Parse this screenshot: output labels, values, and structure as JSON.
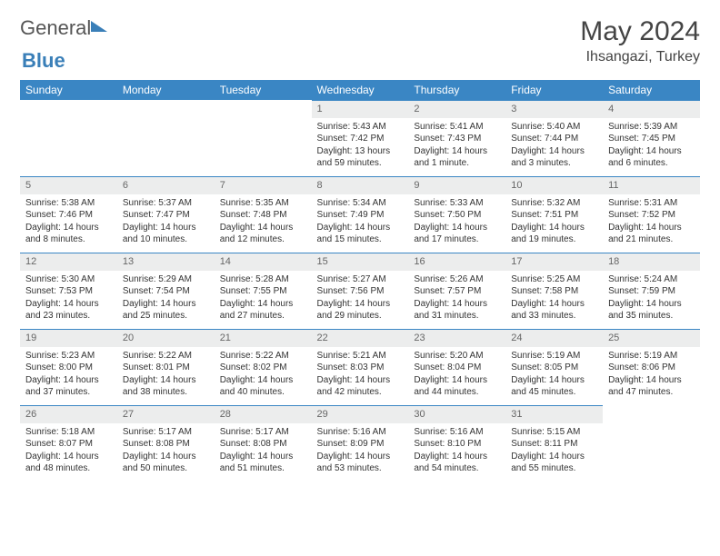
{
  "logo": {
    "text1": "General",
    "text2": "Blue"
  },
  "title": "May 2024",
  "location": "Ihsangazi, Turkey",
  "colors": {
    "header_bg": "#3a86c4",
    "daynum_bg": "#eceded",
    "rule": "#3a86c4"
  },
  "weekdays": [
    "Sunday",
    "Monday",
    "Tuesday",
    "Wednesday",
    "Thursday",
    "Friday",
    "Saturday"
  ],
  "weeks": [
    [
      null,
      null,
      null,
      {
        "n": "1",
        "sr": "5:43 AM",
        "ss": "7:42 PM",
        "dl": "13 hours and 59 minutes."
      },
      {
        "n": "2",
        "sr": "5:41 AM",
        "ss": "7:43 PM",
        "dl": "14 hours and 1 minute."
      },
      {
        "n": "3",
        "sr": "5:40 AM",
        "ss": "7:44 PM",
        "dl": "14 hours and 3 minutes."
      },
      {
        "n": "4",
        "sr": "5:39 AM",
        "ss": "7:45 PM",
        "dl": "14 hours and 6 minutes."
      }
    ],
    [
      {
        "n": "5",
        "sr": "5:38 AM",
        "ss": "7:46 PM",
        "dl": "14 hours and 8 minutes."
      },
      {
        "n": "6",
        "sr": "5:37 AM",
        "ss": "7:47 PM",
        "dl": "14 hours and 10 minutes."
      },
      {
        "n": "7",
        "sr": "5:35 AM",
        "ss": "7:48 PM",
        "dl": "14 hours and 12 minutes."
      },
      {
        "n": "8",
        "sr": "5:34 AM",
        "ss": "7:49 PM",
        "dl": "14 hours and 15 minutes."
      },
      {
        "n": "9",
        "sr": "5:33 AM",
        "ss": "7:50 PM",
        "dl": "14 hours and 17 minutes."
      },
      {
        "n": "10",
        "sr": "5:32 AM",
        "ss": "7:51 PM",
        "dl": "14 hours and 19 minutes."
      },
      {
        "n": "11",
        "sr": "5:31 AM",
        "ss": "7:52 PM",
        "dl": "14 hours and 21 minutes."
      }
    ],
    [
      {
        "n": "12",
        "sr": "5:30 AM",
        "ss": "7:53 PM",
        "dl": "14 hours and 23 minutes."
      },
      {
        "n": "13",
        "sr": "5:29 AM",
        "ss": "7:54 PM",
        "dl": "14 hours and 25 minutes."
      },
      {
        "n": "14",
        "sr": "5:28 AM",
        "ss": "7:55 PM",
        "dl": "14 hours and 27 minutes."
      },
      {
        "n": "15",
        "sr": "5:27 AM",
        "ss": "7:56 PM",
        "dl": "14 hours and 29 minutes."
      },
      {
        "n": "16",
        "sr": "5:26 AM",
        "ss": "7:57 PM",
        "dl": "14 hours and 31 minutes."
      },
      {
        "n": "17",
        "sr": "5:25 AM",
        "ss": "7:58 PM",
        "dl": "14 hours and 33 minutes."
      },
      {
        "n": "18",
        "sr": "5:24 AM",
        "ss": "7:59 PM",
        "dl": "14 hours and 35 minutes."
      }
    ],
    [
      {
        "n": "19",
        "sr": "5:23 AM",
        "ss": "8:00 PM",
        "dl": "14 hours and 37 minutes."
      },
      {
        "n": "20",
        "sr": "5:22 AM",
        "ss": "8:01 PM",
        "dl": "14 hours and 38 minutes."
      },
      {
        "n": "21",
        "sr": "5:22 AM",
        "ss": "8:02 PM",
        "dl": "14 hours and 40 minutes."
      },
      {
        "n": "22",
        "sr": "5:21 AM",
        "ss": "8:03 PM",
        "dl": "14 hours and 42 minutes."
      },
      {
        "n": "23",
        "sr": "5:20 AM",
        "ss": "8:04 PM",
        "dl": "14 hours and 44 minutes."
      },
      {
        "n": "24",
        "sr": "5:19 AM",
        "ss": "8:05 PM",
        "dl": "14 hours and 45 minutes."
      },
      {
        "n": "25",
        "sr": "5:19 AM",
        "ss": "8:06 PM",
        "dl": "14 hours and 47 minutes."
      }
    ],
    [
      {
        "n": "26",
        "sr": "5:18 AM",
        "ss": "8:07 PM",
        "dl": "14 hours and 48 minutes."
      },
      {
        "n": "27",
        "sr": "5:17 AM",
        "ss": "8:08 PM",
        "dl": "14 hours and 50 minutes."
      },
      {
        "n": "28",
        "sr": "5:17 AM",
        "ss": "8:08 PM",
        "dl": "14 hours and 51 minutes."
      },
      {
        "n": "29",
        "sr": "5:16 AM",
        "ss": "8:09 PM",
        "dl": "14 hours and 53 minutes."
      },
      {
        "n": "30",
        "sr": "5:16 AM",
        "ss": "8:10 PM",
        "dl": "14 hours and 54 minutes."
      },
      {
        "n": "31",
        "sr": "5:15 AM",
        "ss": "8:11 PM",
        "dl": "14 hours and 55 minutes."
      },
      null
    ]
  ],
  "labels": {
    "sunrise": "Sunrise:",
    "sunset": "Sunset:",
    "daylight": "Daylight:"
  }
}
